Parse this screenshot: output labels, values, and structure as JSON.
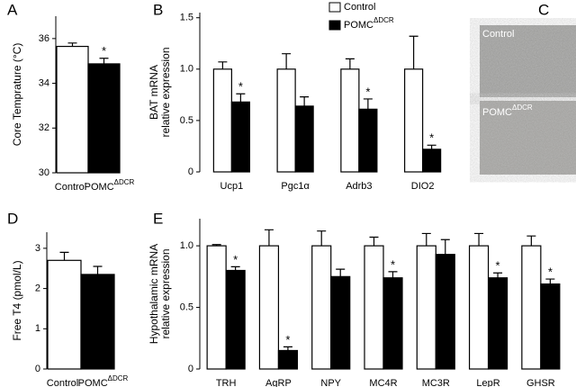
{
  "chart_data": [
    {
      "panel": "A",
      "type": "bar",
      "ylabel": [
        "Core Temprature (°C)"
      ],
      "categories": [
        "Control",
        "POMC"
      ],
      "category_superscripts": [
        null,
        "ΔDCR"
      ],
      "values": [
        35.65,
        34.87
      ],
      "errors": [
        0.15,
        0.25
      ],
      "colors": [
        "#ffffff",
        "#000000"
      ],
      "annotations": [
        null,
        "*"
      ],
      "ylim": [
        30,
        37
      ],
      "yticks": [
        30,
        32,
        34,
        36
      ]
    },
    {
      "panel": "B",
      "type": "bar",
      "ylabel": [
        "BAT  mRNA",
        "relative  expression"
      ],
      "categories": [
        "Ucp1",
        "Pgc1α",
        "Adrb3",
        "DIO2"
      ],
      "series": [
        {
          "name": "Control",
          "color": "#ffffff",
          "values": [
            1,
            1,
            1,
            1
          ],
          "errors": [
            0.07,
            0.15,
            0.1,
            0.32
          ],
          "annotations": [
            null,
            null,
            null,
            null
          ]
        },
        {
          "name": "POMC",
          "name_superscript": "ΔDCR",
          "color": "#000000",
          "values": [
            0.68,
            0.64,
            0.61,
            0.22
          ],
          "errors": [
            0.08,
            0.09,
            0.1,
            0.04
          ],
          "annotations": [
            "*",
            null,
            "*",
            "*"
          ]
        }
      ],
      "ylim": [
        0,
        1.55
      ],
      "yticks": [
        0,
        0.5,
        {
          "value": 1,
          "label": "1.0"
        },
        1.5
      ]
    },
    {
      "panel": "D",
      "type": "bar",
      "ylabel": [
        "Free T4 (pmol/L)"
      ],
      "categories": [
        "Control",
        "POMC"
      ],
      "category_superscripts": [
        null,
        "ΔDCR"
      ],
      "values": [
        2.7,
        2.35
      ],
      "errors": [
        0.2,
        0.2
      ],
      "colors": [
        "#ffffff",
        "#000000"
      ],
      "annotations": [
        null,
        null
      ],
      "ylim": [
        0,
        3.4
      ],
      "yticks": [
        0,
        1,
        2,
        3
      ]
    },
    {
      "panel": "E",
      "type": "bar",
      "ylabel": [
        "Hypothalamic mRNA",
        "relative expression"
      ],
      "categories": [
        "TRH",
        "AgRP",
        "NPY",
        "MC4R",
        "MC3R",
        "LepR",
        "GHSR"
      ],
      "series": [
        {
          "name": "Control",
          "color": "#ffffff",
          "values": [
            1,
            1,
            1,
            1,
            1,
            1,
            1
          ],
          "errors": [
            0.01,
            0.13,
            0.12,
            0.07,
            0.1,
            0.1,
            0.08
          ],
          "annotations": [
            null,
            null,
            null,
            null,
            null,
            null,
            null
          ]
        },
        {
          "name": "POMC",
          "name_superscript": "ΔDCR",
          "color": "#000000",
          "values": [
            0.8,
            0.15,
            0.75,
            0.74,
            0.93,
            0.74,
            0.69
          ],
          "errors": [
            0.03,
            0.03,
            0.06,
            0.05,
            0.12,
            0.04,
            0.04
          ],
          "annotations": [
            "*",
            "*",
            null,
            "*",
            null,
            "*",
            "*"
          ]
        }
      ],
      "ylim": [
        0,
        1.22
      ],
      "yticks": [
        0,
        0.5,
        {
          "value": 1,
          "label": "1.0"
        }
      ]
    }
  ],
  "panel_c": {
    "letter": "C",
    "images": [
      {
        "label": "Control"
      },
      {
        "label": "POMC",
        "label_superscript": "ΔDCR"
      }
    ]
  }
}
